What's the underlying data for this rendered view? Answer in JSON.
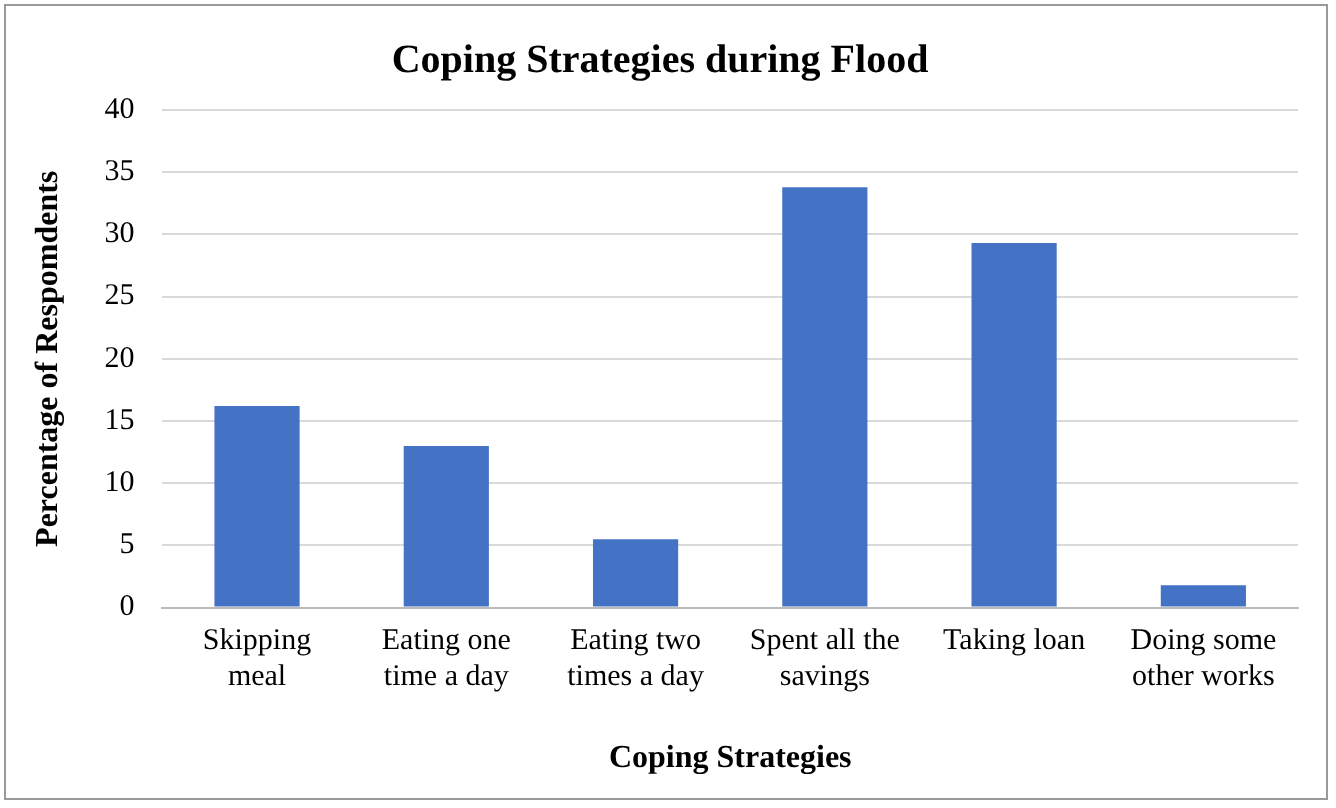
{
  "chart_data": {
    "type": "bar",
    "title": "Coping Strategies during Flood",
    "xlabel": "Coping Strategies",
    "ylabel": "Percentage of Respomdents",
    "categories": [
      "Skipping meal",
      "Eating one time a day",
      "Eating two times a day",
      "Spent all the savings",
      "Taking loan",
      "Doing some other works"
    ],
    "values": [
      16.2,
      13,
      5.5,
      33.8,
      29.3,
      1.8
    ],
    "color": "#4472c4",
    "ylim": [
      0,
      40
    ],
    "yticks": [
      0,
      5,
      10,
      15,
      20,
      25,
      30,
      35,
      40
    ],
    "grid": "y",
    "legend": false
  }
}
